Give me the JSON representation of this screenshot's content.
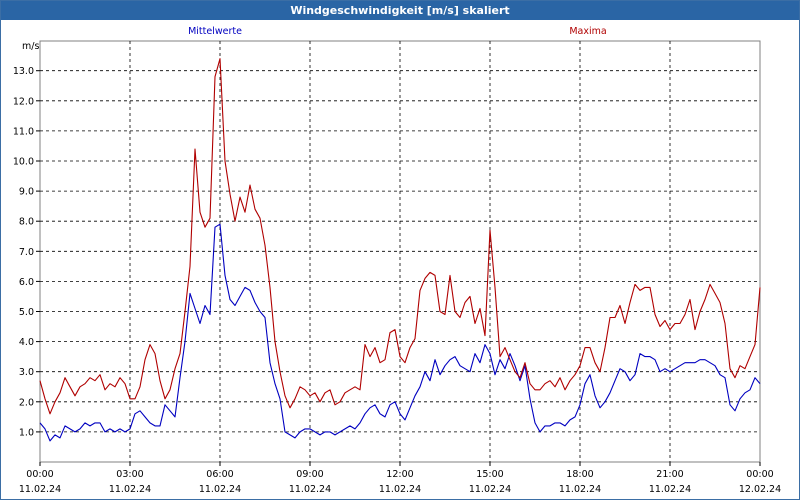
{
  "window": {
    "title": "Windgeschwindigkeit [m/s] skaliert"
  },
  "chart_data": {
    "type": "line",
    "title": "Windgeschwindigkeit [m/s] skaliert",
    "ylabel": "m/s",
    "ylim": [
      0,
      14
    ],
    "xlim": [
      0,
      24
    ],
    "yticks": [
      "1.0",
      "2.0",
      "3.0",
      "4.0",
      "5.0",
      "6.0",
      "7.0",
      "8.0",
      "9.0",
      "10.0",
      "11.0",
      "12.0",
      "13.0"
    ],
    "xticks": [
      {
        "time": "00:00",
        "date": "11.02.24"
      },
      {
        "time": "03:00",
        "date": "11.02.24"
      },
      {
        "time": "06:00",
        "date": "11.02.24"
      },
      {
        "time": "09:00",
        "date": "11.02.24"
      },
      {
        "time": "12:00",
        "date": "11.02.24"
      },
      {
        "time": "15:00",
        "date": "11.02.24"
      },
      {
        "time": "18:00",
        "date": "11.02.24"
      },
      {
        "time": "21:00",
        "date": "11.02.24"
      },
      {
        "time": "00:00",
        "date": "12.02.24"
      }
    ],
    "grid": true,
    "series": [
      {
        "name": "Mittelwerte",
        "color": "#0000c0",
        "values": [
          1.3,
          1.1,
          0.7,
          0.9,
          0.8,
          1.2,
          1.1,
          1.0,
          1.1,
          1.3,
          1.2,
          1.3,
          1.3,
          1.0,
          1.1,
          1.0,
          1.1,
          1.0,
          1.1,
          1.6,
          1.7,
          1.5,
          1.3,
          1.2,
          1.2,
          1.9,
          1.7,
          1.5,
          2.8,
          4.0,
          5.6,
          5.1,
          4.6,
          5.2,
          4.9,
          7.8,
          7.9,
          6.2,
          5.4,
          5.2,
          5.5,
          5.8,
          5.7,
          5.3,
          5.0,
          4.8,
          3.3,
          2.6,
          2.1,
          1.0,
          0.9,
          0.8,
          1.0,
          1.1,
          1.1,
          1.0,
          0.9,
          1.0,
          1.0,
          0.9,
          1.0,
          1.1,
          1.2,
          1.1,
          1.3,
          1.6,
          1.8,
          1.9,
          1.6,
          1.5,
          1.9,
          2.0,
          1.6,
          1.4,
          1.8,
          2.2,
          2.5,
          3.0,
          2.7,
          3.4,
          2.9,
          3.2,
          3.4,
          3.5,
          3.2,
          3.1,
          3.0,
          3.6,
          3.3,
          3.9,
          3.6,
          2.9,
          3.4,
          3.1,
          3.6,
          3.2,
          2.7,
          3.2,
          2.1,
          1.3,
          1.0,
          1.2,
          1.2,
          1.3,
          1.3,
          1.2,
          1.4,
          1.5,
          1.9,
          2.6,
          2.9,
          2.2,
          1.8,
          2.0,
          2.3,
          2.7,
          3.1,
          3.0,
          2.7,
          2.9,
          3.6,
          3.5,
          3.5,
          3.4,
          3.0,
          3.1,
          3.0,
          3.1,
          3.2,
          3.3,
          3.3,
          3.3,
          3.4,
          3.4,
          3.3,
          3.2,
          2.9,
          2.8,
          1.9,
          1.7,
          2.1,
          2.3,
          2.4,
          2.8,
          2.6
        ]
      },
      {
        "name": "Maxima",
        "color": "#b00000",
        "values": [
          2.7,
          2.1,
          1.6,
          2.0,
          2.3,
          2.8,
          2.5,
          2.2,
          2.5,
          2.6,
          2.8,
          2.7,
          2.9,
          2.4,
          2.6,
          2.5,
          2.8,
          2.6,
          2.1,
          2.1,
          2.5,
          3.4,
          3.9,
          3.6,
          2.7,
          2.1,
          2.4,
          3.1,
          3.6,
          5.0,
          6.5,
          10.4,
          8.3,
          7.8,
          8.1,
          12.8,
          13.4,
          10.0,
          8.9,
          8.0,
          8.8,
          8.3,
          9.2,
          8.4,
          8.1,
          7.2,
          5.8,
          4.0,
          3.0,
          2.2,
          1.8,
          2.1,
          2.5,
          2.4,
          2.2,
          2.3,
          2.0,
          2.3,
          2.4,
          1.9,
          2.0,
          2.3,
          2.4,
          2.5,
          2.4,
          3.9,
          3.5,
          3.8,
          3.3,
          3.4,
          4.3,
          4.4,
          3.5,
          3.3,
          3.8,
          4.1,
          5.7,
          6.1,
          6.3,
          6.2,
          5.0,
          4.9,
          6.2,
          5.0,
          4.8,
          5.3,
          5.5,
          4.6,
          5.1,
          4.2,
          7.7,
          5.8,
          3.5,
          3.8,
          3.4,
          3.0,
          2.8,
          3.3,
          2.6,
          2.4,
          2.4,
          2.6,
          2.7,
          2.5,
          2.8,
          2.4,
          2.7,
          2.9,
          3.2,
          3.8,
          3.8,
          3.3,
          3.0,
          3.8,
          4.8,
          4.8,
          5.2,
          4.6,
          5.3,
          5.9,
          5.7,
          5.8,
          5.8,
          4.9,
          4.5,
          4.7,
          4.4,
          4.6,
          4.6,
          4.9,
          5.4,
          4.4,
          5.0,
          5.4,
          5.9,
          5.6,
          5.3,
          4.6,
          3.1,
          2.8,
          3.2,
          3.1,
          3.5,
          3.9,
          5.8
        ]
      }
    ]
  }
}
